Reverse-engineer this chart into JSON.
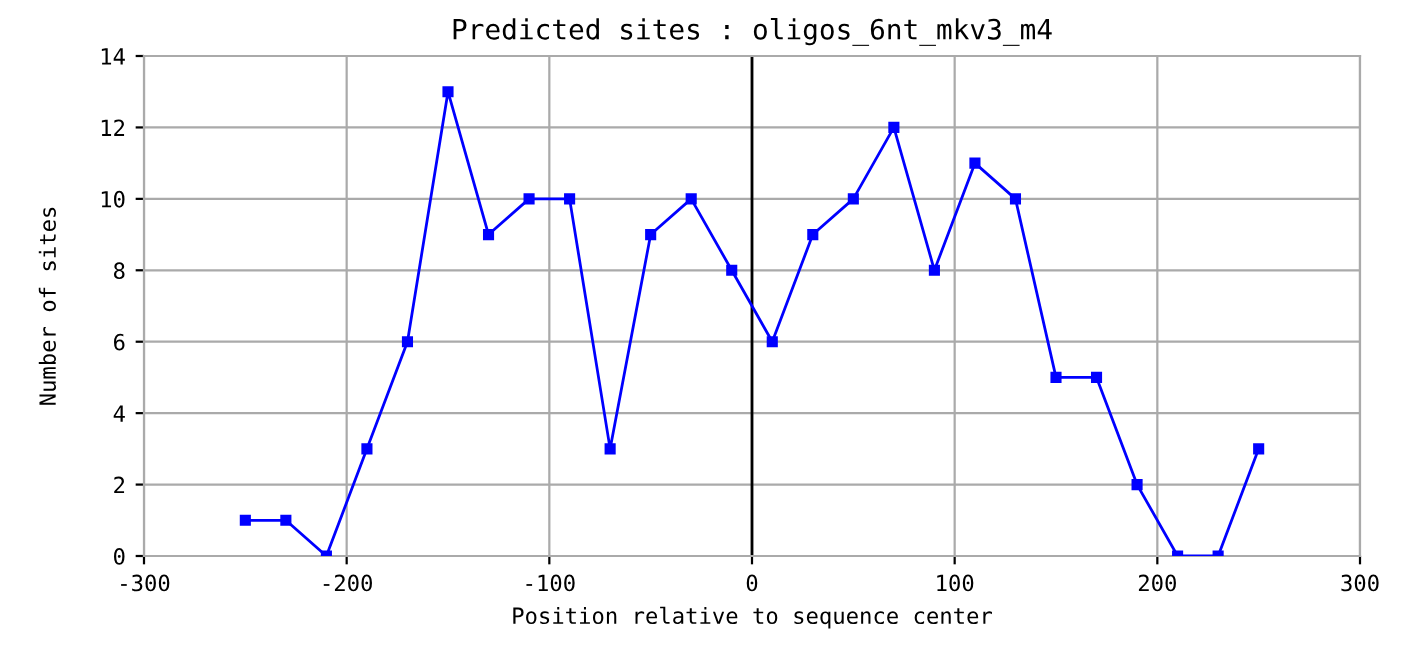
{
  "chart_data": {
    "type": "line",
    "title": "Predicted sites : oligos_6nt_mkv3_m4",
    "xlabel": "Position relative to sequence center",
    "ylabel": "Number of sites",
    "x": [
      -250,
      -230,
      -210,
      -190,
      -170,
      -150,
      -130,
      -110,
      -90,
      -70,
      -50,
      -30,
      -10,
      10,
      30,
      50,
      70,
      90,
      110,
      130,
      150,
      170,
      190,
      210,
      230,
      250
    ],
    "series": [
      {
        "color": "#0000ff",
        "values": [
          1,
          1,
          0,
          3,
          6,
          13,
          9,
          10,
          10,
          3,
          9,
          10,
          8,
          6,
          9,
          10,
          12,
          8,
          11,
          10,
          5,
          5,
          2,
          0,
          0,
          3
        ]
      }
    ],
    "xlim": [
      -300,
      300
    ],
    "xticks": [
      -300,
      -200,
      -100,
      0,
      100,
      200,
      300
    ],
    "ylim": [
      0,
      14
    ],
    "yticks": [
      0,
      2,
      4,
      6,
      8,
      10,
      12,
      14
    ],
    "ref_lines": [
      {
        "axis": "x",
        "value": 0,
        "color": "#000000"
      }
    ],
    "grid": true,
    "marker": "square",
    "line_style": "solid"
  }
}
